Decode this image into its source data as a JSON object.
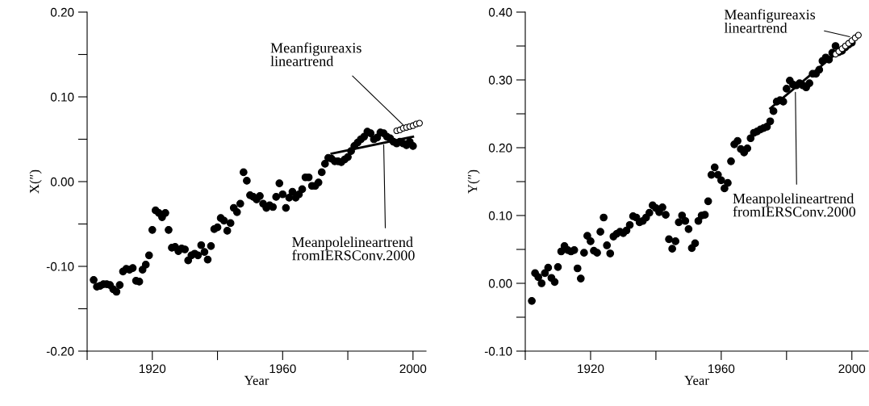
{
  "chart_data": [
    {
      "type": "scatter",
      "xlabel": "Year",
      "ylabel": "X(″)",
      "xlim": [
        1900,
        2004
      ],
      "ylim": [
        -0.2,
        0.2
      ],
      "xticks": [
        {
          "value": 1900,
          "label": null
        },
        1920,
        {
          "value": 1940,
          "label": null
        },
        1960,
        {
          "value": 1980,
          "label": null
        },
        2000
      ],
      "yticks": [
        {
          "value": -0.2,
          "label": "-0.20"
        },
        {
          "value": -0.15,
          "label": null
        },
        {
          "value": -0.1,
          "label": "-0.10"
        },
        {
          "value": -0.05,
          "label": null
        },
        {
          "value": 0,
          "label": "0.00"
        },
        {
          "value": 0.05,
          "label": null
        },
        {
          "value": 0.1,
          "label": "0.10"
        },
        {
          "value": 0.15,
          "label": null
        },
        {
          "value": 0.2,
          "label": "0.20"
        }
      ],
      "grid": false,
      "legend": false,
      "series": [
        {
          "marker": "circle",
          "color": "#000000",
          "x": [
            1902,
            1903,
            1904,
            1905,
            1906,
            1907,
            1908,
            1909,
            1910,
            1911,
            1912,
            1913,
            1914,
            1915,
            1916,
            1917,
            1918,
            1919,
            1920,
            1921,
            1922,
            1923,
            1924,
            1925,
            1926,
            1927,
            1928,
            1929,
            1930,
            1931,
            1932,
            1933,
            1934,
            1935,
            1936,
            1937,
            1938,
            1939,
            1940,
            1941,
            1942,
            1943,
            1944,
            1945,
            1946,
            1947,
            1948,
            1949,
            1950,
            1951,
            1952,
            1953,
            1954,
            1955,
            1956,
            1957,
            1958,
            1959,
            1960,
            1961,
            1962,
            1963,
            1964,
            1965,
            1966,
            1967,
            1968,
            1969,
            1970,
            1971,
            1972,
            1973,
            1974,
            1975,
            1976,
            1977,
            1978,
            1979,
            1980,
            1981,
            1982,
            1983,
            1984,
            1985,
            1986,
            1987,
            1988,
            1989,
            1990,
            1991,
            1992,
            1993,
            1994,
            1995,
            1996,
            1997,
            1998,
            1999,
            2000
          ],
          "values": [
            -0.116,
            -0.124,
            -0.123,
            -0.121,
            -0.121,
            -0.122,
            -0.127,
            -0.13,
            -0.122,
            -0.106,
            -0.103,
            -0.104,
            -0.102,
            -0.117,
            -0.118,
            -0.104,
            -0.098,
            -0.087,
            -0.057,
            -0.034,
            -0.037,
            -0.042,
            -0.037,
            -0.057,
            -0.078,
            -0.077,
            -0.082,
            -0.079,
            -0.08,
            -0.093,
            -0.087,
            -0.085,
            -0.087,
            -0.075,
            -0.083,
            -0.092,
            -0.076,
            -0.056,
            -0.054,
            -0.043,
            -0.046,
            -0.058,
            -0.049,
            -0.031,
            -0.036,
            -0.026,
            0.011,
            0.001,
            -0.016,
            -0.018,
            -0.021,
            -0.017,
            -0.026,
            -0.031,
            -0.028,
            -0.03,
            -0.018,
            -0.002,
            -0.015,
            -0.031,
            -0.019,
            -0.012,
            -0.019,
            -0.015,
            -0.009,
            0.005,
            0.005,
            -0.005,
            -0.005,
            -0.001,
            0.011,
            0.021,
            0.028,
            0.027,
            0.024,
            0.024,
            0.023,
            0.026,
            0.029,
            0.036,
            0.042,
            0.046,
            0.05,
            0.053,
            0.059,
            0.057,
            0.05,
            0.052,
            0.058,
            0.057,
            0.053,
            0.051,
            0.047,
            0.045,
            0.047,
            0.045,
            0.043,
            0.047,
            0.042
          ]
        },
        {
          "marker": "circle",
          "color": "#ffffff",
          "x": [
            1995,
            1996,
            1997,
            1998,
            1999,
            2000,
            2001,
            2002
          ],
          "values": [
            0.06,
            0.061,
            0.063,
            0.064,
            0.065,
            0.066,
            0.068,
            0.069
          ]
        },
        {
          "type": "line",
          "marker": "none",
          "line_style": "solid",
          "color": "#000000",
          "x": [
            1975,
            2000
          ],
          "values": [
            0.033,
            0.053
          ]
        }
      ],
      "annotations": [
        {
          "text": "Meanfigureaxis\nlineartrend",
          "x": 1997.5,
          "y": 0.065
        },
        {
          "text": "Meanpolelineartrend\nfromIERSConv.2000",
          "x": 1991,
          "y": 0.046
        }
      ]
    },
    {
      "type": "scatter",
      "xlabel": "Year",
      "ylabel": "Y(″)",
      "xlim": [
        1900,
        2005
      ],
      "ylim": [
        -0.1,
        0.4
      ],
      "xticks": [
        {
          "value": 1900,
          "label": null
        },
        1920,
        {
          "value": 1940,
          "label": null
        },
        1960,
        {
          "value": 1980,
          "label": null
        },
        2000
      ],
      "yticks": [
        {
          "value": -0.1,
          "label": "-0.10"
        },
        {
          "value": -0.05,
          "label": null
        },
        {
          "value": 0,
          "label": "0.00"
        },
        {
          "value": 0.05,
          "label": null
        },
        {
          "value": 0.1,
          "label": "0.10"
        },
        {
          "value": 0.15,
          "label": null
        },
        {
          "value": 0.2,
          "label": "0.20"
        },
        {
          "value": 0.25,
          "label": null
        },
        {
          "value": 0.3,
          "label": "0.30"
        },
        {
          "value": 0.35,
          "label": null
        },
        {
          "value": 0.4,
          "label": "0.40"
        }
      ],
      "grid": false,
      "legend": false,
      "series": [
        {
          "marker": "circle",
          "color": "#000000",
          "x": [
            1902,
            1903,
            1904,
            1905,
            1906,
            1907,
            1908,
            1909,
            1910,
            1911,
            1912,
            1913,
            1914,
            1915,
            1916,
            1917,
            1918,
            1919,
            1920,
            1921,
            1922,
            1923,
            1924,
            1925,
            1926,
            1927,
            1928,
            1929,
            1930,
            1931,
            1932,
            1933,
            1934,
            1935,
            1936,
            1937,
            1938,
            1939,
            1940,
            1941,
            1942,
            1943,
            1944,
            1945,
            1946,
            1947,
            1948,
            1949,
            1950,
            1951,
            1952,
            1953,
            1954,
            1955,
            1956,
            1957,
            1958,
            1959,
            1960,
            1961,
            1962,
            1963,
            1964,
            1965,
            1966,
            1967,
            1968,
            1969,
            1970,
            1971,
            1972,
            1973,
            1974,
            1975,
            1976,
            1977,
            1978,
            1979,
            1980,
            1981,
            1982,
            1983,
            1984,
            1985,
            1986,
            1987,
            1988,
            1989,
            1990,
            1991,
            1992,
            1993,
            1994,
            1995,
            1996,
            1997,
            1998,
            1999,
            2000
          ],
          "values": [
            -0.026,
            0.015,
            0.009,
            0.0,
            0.015,
            0.023,
            0.008,
            0.002,
            0.024,
            0.047,
            0.055,
            0.049,
            0.047,
            0.049,
            0.022,
            0.007,
            0.045,
            0.07,
            0.062,
            0.048,
            0.045,
            0.076,
            0.097,
            0.056,
            0.044,
            0.069,
            0.073,
            0.076,
            0.074,
            0.078,
            0.086,
            0.099,
            0.097,
            0.09,
            0.092,
            0.097,
            0.104,
            0.115,
            0.111,
            0.105,
            0.112,
            0.101,
            0.065,
            0.051,
            0.062,
            0.09,
            0.1,
            0.092,
            0.08,
            0.052,
            0.059,
            0.092,
            0.1,
            0.101,
            0.121,
            0.16,
            0.171,
            0.16,
            0.152,
            0.14,
            0.148,
            0.18,
            0.205,
            0.21,
            0.198,
            0.193,
            0.199,
            0.214,
            0.222,
            0.224,
            0.227,
            0.229,
            0.231,
            0.239,
            0.254,
            0.268,
            0.27,
            0.268,
            0.287,
            0.299,
            0.293,
            0.292,
            0.295,
            0.292,
            0.289,
            0.295,
            0.309,
            0.309,
            0.315,
            0.328,
            0.333,
            0.33,
            0.34,
            0.35,
            0.341,
            0.343,
            0.348,
            0.352,
            0.355
          ]
        },
        {
          "marker": "circle",
          "color": "#ffffff",
          "x": [
            1995,
            1996,
            1997,
            1998,
            1999,
            2000,
            2001,
            2002
          ],
          "values": [
            0.338,
            0.342,
            0.346,
            0.35,
            0.354,
            0.358,
            0.362,
            0.366
          ]
        },
        {
          "type": "line",
          "marker": "none",
          "line_style": "solid",
          "color": "#000000",
          "x": [
            1975,
            2000
          ],
          "values": [
            0.258,
            0.358
          ]
        }
      ],
      "annotations": [
        {
          "text": "Meanfigureaxis\nlineartrend",
          "x": 2000,
          "y": 0.363
        },
        {
          "text": "Meanpolelineartrend\nfromIERSConv.2000",
          "x": 1982.7,
          "y": 0.285
        }
      ]
    }
  ]
}
